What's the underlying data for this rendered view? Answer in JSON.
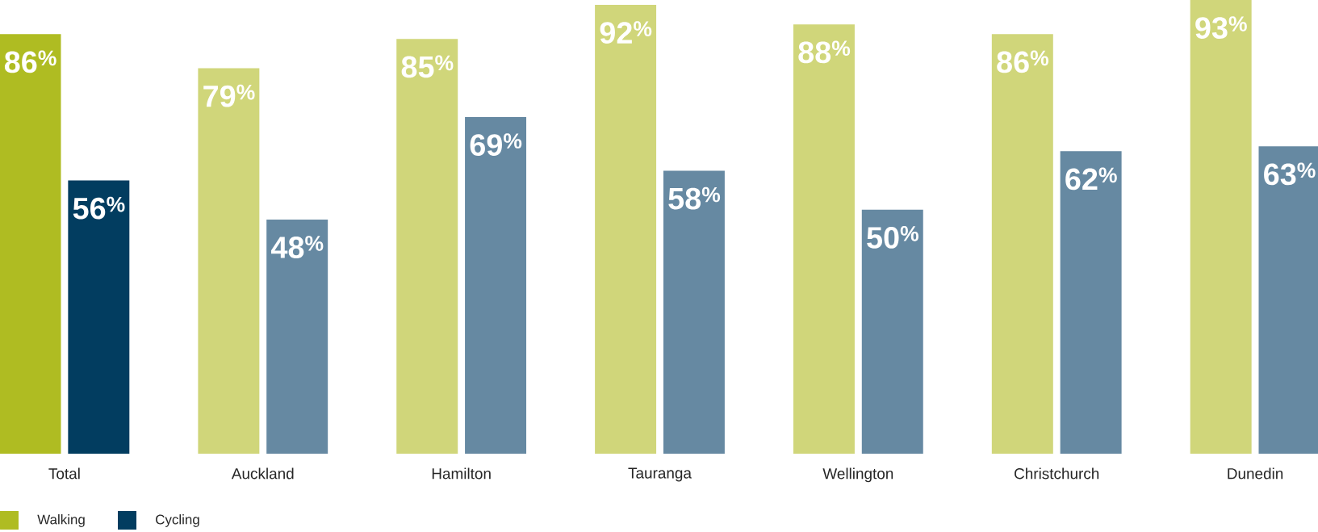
{
  "chart_data": {
    "type": "bar",
    "categories": [
      "Total",
      "Auckland",
      "Hamilton",
      "Tauranga",
      "Wellington",
      "Christchurch",
      "Dunedin"
    ],
    "series": [
      {
        "name": "Walking",
        "color": "#afbc22",
        "colors": [
          "#afbc22",
          "#d0d67a",
          "#d0d67a",
          "#d0d67a",
          "#d0d67a",
          "#d0d67a",
          "#d0d67a"
        ],
        "values": [
          86,
          79,
          85,
          92,
          88,
          86,
          93
        ],
        "value_labels": [
          "86$^{%}$",
          "79$^{%}$",
          "85$^{%}$",
          "92$^{%}$",
          "88$^{%}$",
          "86$^{%}$",
          "93$^{%}$"
        ]
      },
      {
        "name": "Cycling",
        "color": "#023d60",
        "colors": [
          "#023d60",
          "#6689a2",
          "#6689a2",
          "#6689a2",
          "#6689a2",
          "#6689a2",
          "#6689a2"
        ],
        "values": [
          56,
          48,
          69,
          58,
          50,
          62,
          63
        ],
        "value_labels": [
          "56$^{%}$",
          "48$^{%}$",
          "69$^{%}$",
          "58$^{%}$",
          "50$^{%}$",
          "62$^{%}$",
          "63$^{%}$"
        ]
      }
    ],
    "ylim": [
      0,
      93
    ],
    "legend": "bottom left"
  }
}
